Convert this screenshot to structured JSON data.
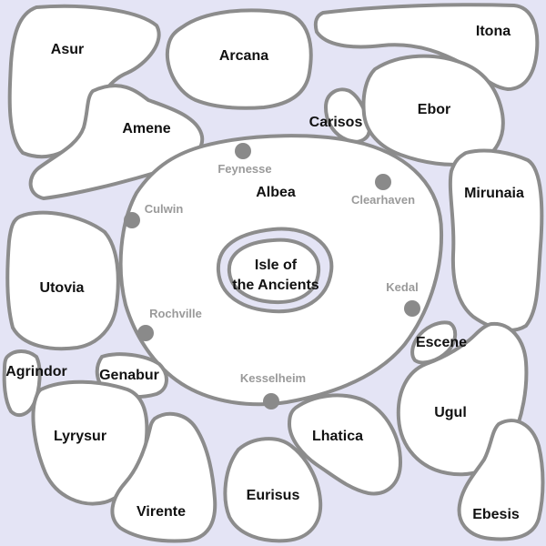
{
  "colors": {
    "sea": "#e4e4f5",
    "land": "#ffffff",
    "coast": "#8c8c8c",
    "region_text": "#111111",
    "city_text": "#9a9a9a",
    "city_dot": "#8a8a8a"
  },
  "regions": {
    "asur": "Asur",
    "arcana": "Arcana",
    "itona": "Itona",
    "amene": "Amene",
    "carisos": "Carisos",
    "ebor": "Ebor",
    "albea": "Albea",
    "mirunaia": "Mirunaia",
    "utovia": "Utovia",
    "isle_line1": "Isle of",
    "isle_line2": "the Ancients",
    "escene": "Escene",
    "agrindor": "Agrindor",
    "genabur": "Genabur",
    "ugul": "Ugul",
    "lyrysur": "Lyrysur",
    "lhatica": "Lhatica",
    "eurisus": "Eurisus",
    "virente": "Virente",
    "ebesis": "Ebesis"
  },
  "cities": {
    "feynesse": "Feynesse",
    "clearhaven": "Clearhaven",
    "culwin": "Culwin",
    "kedal": "Kedal",
    "rochville": "Rochville",
    "kesselheim": "Kesselheim"
  }
}
